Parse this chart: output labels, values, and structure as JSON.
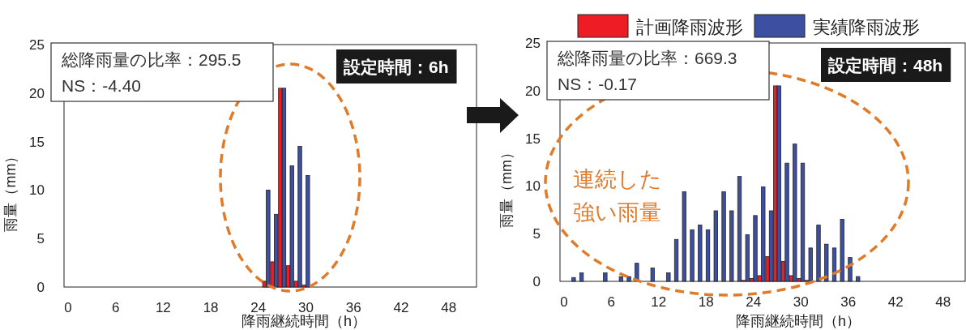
{
  "chart_data": [
    {
      "type": "bar",
      "xlabel": "降雨継続時間（h）",
      "ylabel": "雨量（mm）",
      "xlim": [
        -0.5,
        51.5
      ],
      "xticks": [
        0,
        6,
        12,
        18,
        24,
        30,
        36,
        42,
        48
      ],
      "ylim": [
        0,
        25
      ],
      "yticks": [
        0,
        5,
        10,
        15,
        20,
        25
      ],
      "annotations": [
        "総降雨量の比率：295.5",
        "NS：-4.40",
        "設定時間：6h"
      ],
      "series": [
        {
          "color": "#ee1c25",
          "x": [
            25,
            26,
            27,
            28,
            29,
            30
          ],
          "values": [
            0.6,
            2.6,
            20.5,
            2.2,
            0.6,
            0.2
          ]
        },
        {
          "color": "#3d4fa0",
          "x": [
            25,
            26,
            27,
            28,
            29,
            30
          ],
          "values": [
            10,
            7.5,
            20.5,
            12.5,
            14.5,
            11.5
          ]
        }
      ]
    },
    {
      "type": "bar",
      "xlabel": "降雨継続時間（h）",
      "ylabel": "雨量（mm）",
      "xlim": [
        -0.5,
        50.8
      ],
      "xticks": [
        0,
        6,
        12,
        18,
        24,
        30,
        36,
        42,
        48
      ],
      "ylim": [
        0,
        25
      ],
      "yticks": [
        0,
        5,
        10,
        15,
        20,
        25
      ],
      "legend": "top",
      "annotations": [
        "総降雨量の比率：669.3",
        "NS：-0.17",
        "設定時間：48h",
        "連続した",
        "強い雨量"
      ],
      "series": [
        {
          "name": "計画降雨波形",
          "color": "#ee1c25",
          "x": [
            23,
            24,
            25,
            26,
            27,
            28,
            29,
            30,
            31
          ],
          "values": [
            0.1,
            0.3,
            0.6,
            2.6,
            20.5,
            2.1,
            0.6,
            0.3,
            0.1
          ]
        },
        {
          "name": "実績降雨波形",
          "color": "#3d4fa0",
          "x": [
            1,
            2,
            5,
            7,
            8,
            9,
            11,
            13,
            14,
            15,
            16,
            17,
            18,
            19,
            20,
            21,
            22,
            23,
            24,
            25,
            26,
            27,
            28,
            29,
            30,
            31,
            32,
            33,
            34,
            35,
            36,
            37
          ],
          "values": [
            0.4,
            0.9,
            0.9,
            0.5,
            0.5,
            1.9,
            1.4,
            0.9,
            4.4,
            9.4,
            5.4,
            5.9,
            5.4,
            7.4,
            9.4,
            7.4,
            11.0,
            4.9,
            6.9,
            9.9,
            7.4,
            20.5,
            12.4,
            14.4,
            12.4,
            3.5,
            5.9,
            3.9,
            3.5,
            6.5,
            2.5,
            0.5
          ]
        }
      ]
    }
  ]
}
